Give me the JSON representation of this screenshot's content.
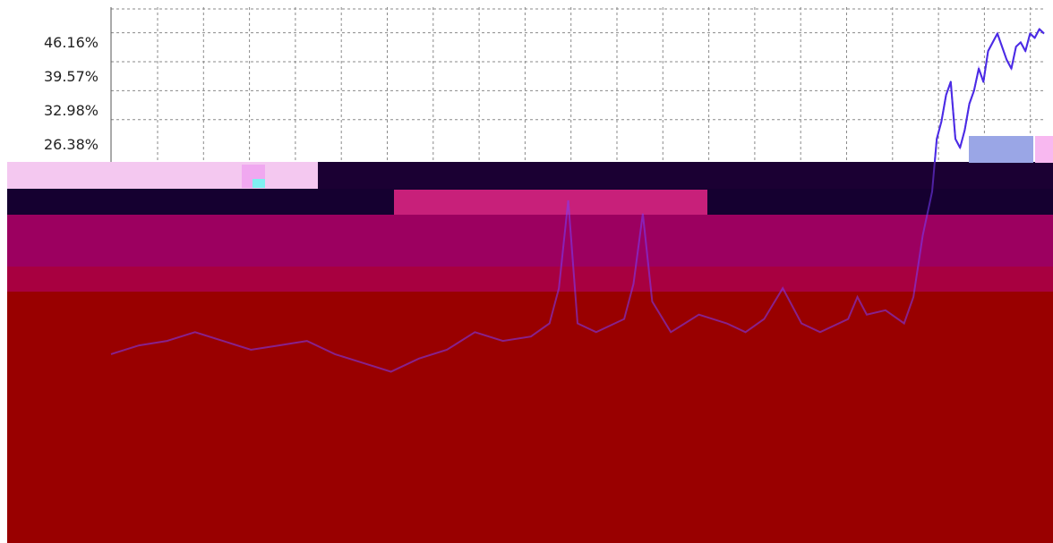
{
  "chart_data": {
    "type": "line",
    "title": "",
    "xlabel": "",
    "ylabel": "",
    "yticks": [
      "46.16%",
      "39.57%",
      "32.98%",
      "26.38%"
    ],
    "ytick_values": [
      46.16,
      39.57,
      32.98,
      26.38
    ],
    "ylim": [
      -70,
      52
    ],
    "xlim": [
      0,
      100
    ],
    "grid": true,
    "legend": "none",
    "series": [
      {
        "color": "#1414c8",
        "x": [
          0,
          3,
          6,
          9,
          12,
          15,
          18,
          21,
          24,
          27,
          30,
          33,
          36,
          39,
          42,
          45,
          47,
          48,
          49,
          50,
          52,
          55,
          56,
          57,
          58,
          60,
          63,
          66,
          68,
          70,
          72,
          73,
          74,
          76,
          79,
          80,
          81,
          83,
          85,
          86,
          87,
          88,
          88.5,
          89,
          89.5,
          90,
          90.5,
          91,
          91.5,
          92,
          92.5,
          93,
          93.5,
          94,
          95,
          96,
          96.5,
          97,
          97.5,
          98,
          98.5,
          99,
          99.5,
          100
        ],
        "values": [
          -27,
          -25,
          -24,
          -22,
          -24,
          -26,
          -25,
          -24,
          -27,
          -29,
          -31,
          -28,
          -26,
          -22,
          -24,
          -23,
          -20,
          -12,
          8,
          -20,
          -22,
          -19,
          -11,
          5,
          -15,
          -22,
          -18,
          -20,
          -22,
          -19,
          -12,
          -16,
          -20,
          -22,
          -19,
          -14,
          -18,
          -17,
          -20,
          -14,
          0,
          10,
          22,
          26,
          32,
          35,
          22,
          20,
          24,
          30,
          33,
          38,
          35,
          42,
          46,
          40,
          38,
          43,
          44,
          42,
          46,
          45,
          47,
          46
        ]
      }
    ]
  },
  "colors": {
    "series": "#1414c8",
    "grid": "#8a8a8a",
    "artifact_dark": "#1b0033",
    "artifact_magenta": "#9c0060",
    "artifact_red": "#990000"
  }
}
